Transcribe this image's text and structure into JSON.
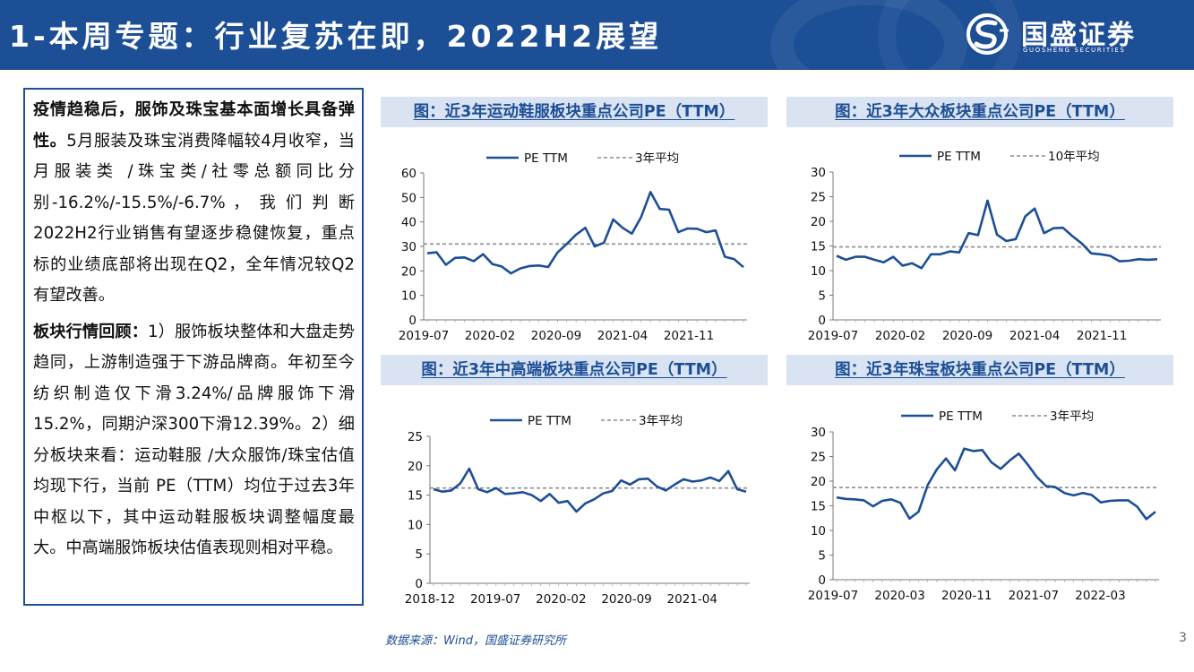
{
  "header": {
    "title": "1-本周专题：行业复苏在即，2022H2展望",
    "logo_text": "国盛证券",
    "logo_sub": "GUOSHENG SECURITIES"
  },
  "summary": {
    "p1_bold": "疫情趋稳后，服饰及珠宝基本面增长具备弹性。",
    "p1_text": "5月服装及珠宝消费降幅较4月收窄，当月服装类 /珠宝类/社零总额同比分别-16.2%/-15.5%/-6.7% ， 我 们 判 断 2022H2行业销售有望逐步稳健恢复，重点标的业绩底部将出现在Q2，全年情况较Q2有望改善。",
    "p2_bold": "板块行情回顾：",
    "p2_text": "1）服饰板块整体和大盘走势趋同，上游制造强于下游品牌商。年初至今纺织制造仅下滑3.24%/品牌服饰下滑15.2%，同期沪深300下滑12.39%。2）细分板块来看：运动鞋服 /大众服饰/珠宝估值均现下行，当前 PE（TTM）均位于过去3年中枢以下，其中运动鞋服板块调整幅度最大。中高端服饰板块估值表现则相对平稳。"
  },
  "source": "数据来源：Wind，国盛证券研究所",
  "page_number": "3",
  "colors": {
    "brand": "#1d4f96",
    "line": "#1d4f96",
    "avg": "#8c8c8c",
    "title_bg": "#d9e3f1"
  },
  "chart_data": [
    {
      "type": "line",
      "title": "图：近3年运动鞋服板块重点公司PE（TTM）",
      "series": [
        {
          "name": "PE TTM",
          "values": [
            27.2,
            27.6,
            22.5,
            25.3,
            25.5,
            24.0,
            26.8,
            22.8,
            21.8,
            19.0,
            21.0,
            22.0,
            22.2,
            21.6,
            27.5,
            31.0,
            34.8,
            37.6,
            30.0,
            31.5,
            41.0,
            37.6,
            35.2,
            42.0,
            52.2,
            45.3,
            45.0,
            35.8,
            37.3,
            37.2,
            35.8,
            36.5,
            25.8,
            24.8,
            21.5
          ]
        },
        {
          "name": "3年平均",
          "value": 31.0
        }
      ],
      "legend": [
        "PE TTM",
        "3年平均"
      ],
      "ylim": [
        0,
        60
      ],
      "yticks": [
        "0",
        "10",
        "20",
        "30",
        "40",
        "50",
        "60"
      ],
      "xticks": [
        "2019-07",
        "2020-02",
        "2020-09",
        "2021-04",
        "2021-11"
      ]
    },
    {
      "type": "line",
      "title": "图：近3年大众板块重点公司PE（TTM）",
      "series": [
        {
          "name": "PE TTM",
          "values": [
            13.0,
            12.2,
            12.8,
            12.8,
            12.2,
            11.7,
            12.8,
            11.0,
            11.5,
            10.5,
            13.3,
            13.3,
            13.9,
            13.7,
            17.6,
            17.2,
            24.2,
            17.3,
            16.0,
            16.4,
            21.0,
            22.6,
            17.6,
            18.6,
            18.7,
            17.0,
            15.5,
            13.5,
            13.3,
            13.0,
            11.9,
            12.0,
            12.3,
            12.2,
            12.3
          ]
        },
        {
          "name": "10年平均",
          "value": 14.8
        }
      ],
      "legend": [
        "PE TTM",
        "10年平均"
      ],
      "ylim": [
        0,
        30
      ],
      "yticks": [
        "0",
        "5",
        "10",
        "15",
        "20",
        "25",
        "30"
      ],
      "xticks": [
        "2019-07",
        "2020-02",
        "2020-09",
        "2021-04",
        "2021-11"
      ]
    },
    {
      "type": "line",
      "title": "图：近3年中高端板块重点公司PE（TTM）",
      "series": [
        {
          "name": "PE TTM",
          "values": [
            16.0,
            15.6,
            15.8,
            17.0,
            19.5,
            16.0,
            15.5,
            16.2,
            15.2,
            15.3,
            15.5,
            15.0,
            14.0,
            15.2,
            13.7,
            14.0,
            12.2,
            13.6,
            14.3,
            15.3,
            15.7,
            17.5,
            16.8,
            17.7,
            17.8,
            16.5,
            15.8,
            16.8,
            17.7,
            17.3,
            17.5,
            18.0,
            17.4,
            19.1,
            16.0,
            15.6
          ]
        },
        {
          "name": "3年平均",
          "value": 16.2
        }
      ],
      "legend": [
        "PE TTM",
        "3年平均"
      ],
      "ylim": [
        0,
        25
      ],
      "yticks": [
        "0",
        "5",
        "10",
        "15",
        "20",
        "25"
      ],
      "xticks": [
        "2018-12",
        "2019-07",
        "2020-02",
        "2020-09",
        "2021-04"
      ]
    },
    {
      "type": "line",
      "title": "图：近3年珠宝板块重点公司PE（TTM）",
      "series": [
        {
          "name": "PE TTM",
          "values": [
            16.7,
            16.4,
            16.3,
            16.1,
            14.9,
            16.0,
            16.3,
            15.6,
            12.4,
            13.8,
            19.2,
            22.4,
            24.6,
            22.2,
            26.6,
            26.1,
            26.3,
            23.8,
            22.5,
            24.2,
            25.6,
            23.3,
            20.8,
            19.0,
            18.8,
            17.6,
            17.1,
            17.6,
            17.2,
            15.7,
            16.0,
            16.1,
            16.1,
            14.8,
            12.3,
            13.8
          ]
        },
        {
          "name": "3年平均",
          "value": 18.7
        }
      ],
      "legend": [
        "PE TTM",
        "3年平均"
      ],
      "ylim": [
        0,
        30
      ],
      "yticks": [
        "0",
        "5",
        "10",
        "15",
        "20",
        "25",
        "30"
      ],
      "xticks": [
        "2019-07",
        "2020-03",
        "2020-11",
        "2021-07",
        "2022-03"
      ]
    }
  ]
}
